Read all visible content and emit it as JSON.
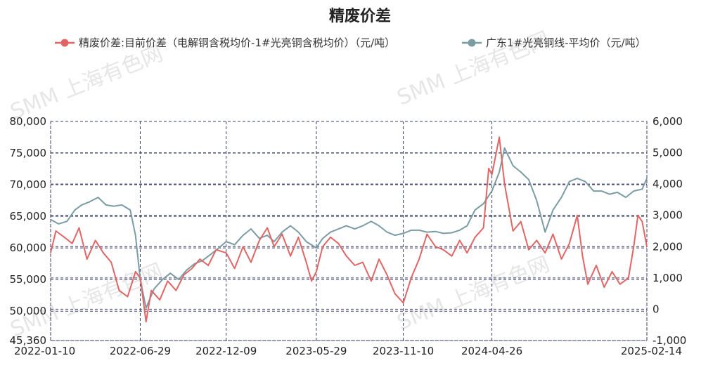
{
  "chart_data": {
    "type": "line",
    "title": "精废价差",
    "watermark": "SMM 上海有色网",
    "x_tick_labels": [
      "2022-01-10",
      "2022-06-29",
      "2022-12-09",
      "2023-05-29",
      "2023-11-10",
      "2024-04-26",
      "2025-02-14"
    ],
    "x_range": [
      "2022-01-10",
      "2025-02-14"
    ],
    "left_axis": {
      "ticks": [
        "80,000",
        "75,000",
        "70,000",
        "65,000",
        "60,000",
        "55,000",
        "50,000",
        "45,360"
      ],
      "range": [
        45360,
        80000
      ]
    },
    "right_axis": {
      "ticks": [
        "6,000",
        "5,000",
        "4,000",
        "3,000",
        "2,000",
        "1,000",
        "0",
        "-1,000"
      ],
      "range": [
        -1000,
        6000
      ]
    },
    "series": [
      {
        "name": "精废价差:目前价差（电解铜含税均价-1#光亮铜含税均价）（元/吨）",
        "axis": "right",
        "color": "#e06666",
        "points": [
          [
            "2022-01-10",
            1800
          ],
          [
            "2022-01-20",
            2500
          ],
          [
            "2022-02-05",
            2300
          ],
          [
            "2022-02-20",
            2100
          ],
          [
            "2022-03-05",
            2600
          ],
          [
            "2022-03-20",
            1600
          ],
          [
            "2022-04-05",
            2200
          ],
          [
            "2022-04-20",
            1800
          ],
          [
            "2022-05-05",
            1500
          ],
          [
            "2022-05-20",
            600
          ],
          [
            "2022-06-05",
            400
          ],
          [
            "2022-06-20",
            1200
          ],
          [
            "2022-06-29",
            1000
          ],
          [
            "2022-07-10",
            -400
          ],
          [
            "2022-07-20",
            600
          ],
          [
            "2022-08-05",
            300
          ],
          [
            "2022-08-20",
            900
          ],
          [
            "2022-09-05",
            600
          ],
          [
            "2022-09-20",
            1100
          ],
          [
            "2022-10-05",
            1300
          ],
          [
            "2022-10-20",
            1600
          ],
          [
            "2022-11-05",
            1400
          ],
          [
            "2022-11-20",
            1900
          ],
          [
            "2022-12-09",
            1800
          ],
          [
            "2022-12-25",
            1300
          ],
          [
            "2023-01-10",
            2000
          ],
          [
            "2023-01-25",
            1500
          ],
          [
            "2023-02-10",
            2200
          ],
          [
            "2023-02-25",
            2600
          ],
          [
            "2023-03-10",
            2000
          ],
          [
            "2023-03-25",
            2400
          ],
          [
            "2023-04-10",
            1700
          ],
          [
            "2023-04-25",
            2300
          ],
          [
            "2023-05-10",
            1500
          ],
          [
            "2023-05-20",
            900
          ],
          [
            "2023-05-29",
            1200
          ],
          [
            "2023-06-10",
            2000
          ],
          [
            "2023-06-25",
            2300
          ],
          [
            "2023-07-10",
            2100
          ],
          [
            "2023-07-25",
            1700
          ],
          [
            "2023-08-10",
            1400
          ],
          [
            "2023-08-25",
            1500
          ],
          [
            "2023-09-10",
            900
          ],
          [
            "2023-09-25",
            1600
          ],
          [
            "2023-10-10",
            1100
          ],
          [
            "2023-10-25",
            500
          ],
          [
            "2023-11-10",
            200
          ],
          [
            "2023-11-25",
            1000
          ],
          [
            "2023-12-10",
            1600
          ],
          [
            "2023-12-25",
            2400
          ],
          [
            "2024-01-10",
            2000
          ],
          [
            "2024-01-25",
            1900
          ],
          [
            "2024-02-10",
            1700
          ],
          [
            "2024-02-25",
            2200
          ],
          [
            "2024-03-10",
            1800
          ],
          [
            "2024-03-25",
            2300
          ],
          [
            "2024-04-10",
            2600
          ],
          [
            "2024-04-20",
            4500
          ],
          [
            "2024-04-26",
            4300
          ],
          [
            "2024-05-10",
            5500
          ],
          [
            "2024-05-20",
            4000
          ],
          [
            "2024-06-05",
            2500
          ],
          [
            "2024-06-20",
            2800
          ],
          [
            "2024-07-05",
            1900
          ],
          [
            "2024-07-20",
            2200
          ],
          [
            "2024-08-05",
            1800
          ],
          [
            "2024-08-20",
            2400
          ],
          [
            "2024-09-05",
            1600
          ],
          [
            "2024-09-20",
            2100
          ],
          [
            "2024-10-05",
            3000
          ],
          [
            "2024-10-15",
            1700
          ],
          [
            "2024-10-25",
            800
          ],
          [
            "2024-11-10",
            1400
          ],
          [
            "2024-11-25",
            700
          ],
          [
            "2024-12-10",
            1200
          ],
          [
            "2024-12-25",
            800
          ],
          [
            "2025-01-10",
            1000
          ],
          [
            "2025-01-20",
            2000
          ],
          [
            "2025-01-28",
            3000
          ],
          [
            "2025-02-05",
            2800
          ],
          [
            "2025-02-14",
            2000
          ]
        ]
      },
      {
        "name": "广东1#光亮铜线-平均价（元/吨）",
        "axis": "left",
        "color": "#7a9ca3",
        "points": [
          [
            "2022-01-10",
            64500
          ],
          [
            "2022-01-25",
            63800
          ],
          [
            "2022-02-10",
            64200
          ],
          [
            "2022-02-25",
            66000
          ],
          [
            "2022-03-10",
            66800
          ],
          [
            "2022-03-25",
            67300
          ],
          [
            "2022-04-10",
            68000
          ],
          [
            "2022-04-25",
            66800
          ],
          [
            "2022-05-10",
            66600
          ],
          [
            "2022-05-25",
            66800
          ],
          [
            "2022-06-10",
            66000
          ],
          [
            "2022-06-20",
            62000
          ],
          [
            "2022-06-29",
            55000
          ],
          [
            "2022-07-10",
            50500
          ],
          [
            "2022-07-25",
            53500
          ],
          [
            "2022-08-10",
            55000
          ],
          [
            "2022-08-25",
            56000
          ],
          [
            "2022-09-10",
            55000
          ],
          [
            "2022-09-25",
            56500
          ],
          [
            "2022-10-10",
            57500
          ],
          [
            "2022-10-25",
            58000
          ],
          [
            "2022-11-10",
            59000
          ],
          [
            "2022-11-25",
            60000
          ],
          [
            "2022-12-09",
            61000
          ],
          [
            "2022-12-25",
            60500
          ],
          [
            "2023-01-10",
            62000
          ],
          [
            "2023-01-25",
            63000
          ],
          [
            "2023-02-10",
            61500
          ],
          [
            "2023-02-25",
            62000
          ],
          [
            "2023-03-10",
            61000
          ],
          [
            "2023-03-25",
            62500
          ],
          [
            "2023-04-10",
            63500
          ],
          [
            "2023-04-25",
            62500
          ],
          [
            "2023-05-10",
            61000
          ],
          [
            "2023-05-29",
            60000
          ],
          [
            "2023-06-10",
            61500
          ],
          [
            "2023-06-25",
            62500
          ],
          [
            "2023-07-10",
            63000
          ],
          [
            "2023-07-25",
            63500
          ],
          [
            "2023-08-10",
            63000
          ],
          [
            "2023-08-25",
            63500
          ],
          [
            "2023-09-10",
            64200
          ],
          [
            "2023-09-25",
            63500
          ],
          [
            "2023-10-10",
            62500
          ],
          [
            "2023-10-25",
            62000
          ],
          [
            "2023-11-10",
            62300
          ],
          [
            "2023-11-25",
            62800
          ],
          [
            "2023-12-10",
            62800
          ],
          [
            "2023-12-25",
            62500
          ],
          [
            "2024-01-10",
            62600
          ],
          [
            "2024-01-25",
            62300
          ],
          [
            "2024-02-10",
            62400
          ],
          [
            "2024-02-25",
            62800
          ],
          [
            "2024-03-10",
            63500
          ],
          [
            "2024-03-25",
            66000
          ],
          [
            "2024-04-10",
            67000
          ],
          [
            "2024-04-26",
            69000
          ],
          [
            "2024-05-10",
            72000
          ],
          [
            "2024-05-20",
            75800
          ],
          [
            "2024-06-05",
            73000
          ],
          [
            "2024-06-20",
            72000
          ],
          [
            "2024-07-05",
            70800
          ],
          [
            "2024-07-20",
            67500
          ],
          [
            "2024-08-05",
            62500
          ],
          [
            "2024-08-20",
            66000
          ],
          [
            "2024-09-05",
            68000
          ],
          [
            "2024-09-20",
            70500
          ],
          [
            "2024-10-05",
            71000
          ],
          [
            "2024-10-20",
            70500
          ],
          [
            "2024-11-05",
            69000
          ],
          [
            "2024-11-20",
            69000
          ],
          [
            "2024-12-05",
            68500
          ],
          [
            "2024-12-20",
            68800
          ],
          [
            "2025-01-05",
            68000
          ],
          [
            "2025-01-20",
            69000
          ],
          [
            "2025-02-05",
            69300
          ],
          [
            "2025-02-14",
            71000
          ]
        ]
      }
    ]
  }
}
